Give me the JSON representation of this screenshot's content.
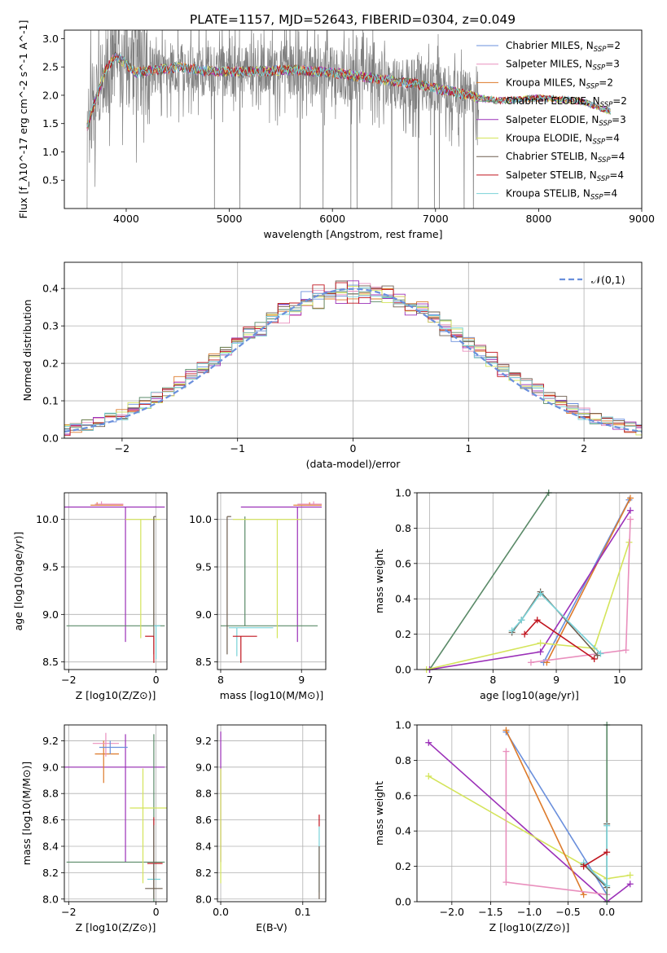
{
  "figure_title": "PLATE=1157, MJD=52643, FIBERID=0304, z=0.049",
  "colors": {
    "chabrier_miles": "#6a8fdc",
    "salpeter_miles": "#e98fbd",
    "kroupa_miles": "#dd7a2a",
    "chabrier_elodie": "#5a8a68",
    "salpeter_elodie": "#9b30b8",
    "kroupa_elodie": "#d4e45a",
    "chabrier_stelib": "#6e5e50",
    "salpeter_stelib": "#c0141e",
    "kroupa_stelib": "#79d2d8",
    "data": "#808080",
    "grid": "#b0b0b0"
  },
  "chart_data": [
    {
      "id": "spectrum",
      "type": "line",
      "xlabel": "wavelength [Angstrom, rest frame]",
      "ylabel": "Flux [f_λ10^-17 erg cm^-2 s^-1 A^-1]",
      "xlim": [
        3400,
        9000
      ],
      "ylim": [
        0.0,
        3.15
      ],
      "xticks": [
        4000,
        5000,
        6000,
        7000,
        8000,
        9000
      ],
      "yticks": [
        0.5,
        1.0,
        1.5,
        2.0,
        2.5,
        3.0
      ],
      "grid": false,
      "legend": "upper right",
      "data_range_x": [
        3620,
        7420
      ],
      "model_continuum": {
        "x": [
          3620,
          3700,
          3800,
          3900,
          4000,
          4100,
          4300,
          4500,
          4800,
          5200,
          5600,
          6000,
          6400,
          6800,
          7200,
          7420,
          7600,
          8000,
          8400,
          8800
        ],
        "y": [
          1.45,
          1.9,
          2.45,
          2.7,
          2.55,
          2.4,
          2.45,
          2.5,
          2.42,
          2.42,
          2.45,
          2.4,
          2.3,
          2.2,
          2.05,
          1.95,
          1.9,
          1.95,
          1.9,
          1.65
        ]
      },
      "series": [
        {
          "name": "Chabrier MILES",
          "nssp": 2,
          "color_key": "chabrier_miles"
        },
        {
          "name": "Salpeter MILES",
          "nssp": 3,
          "color_key": "salpeter_miles"
        },
        {
          "name": "Kroupa MILES",
          "nssp": 2,
          "color_key": "kroupa_miles"
        },
        {
          "name": "Chabrier ELODIE",
          "nssp": 2,
          "color_key": "chabrier_elodie"
        },
        {
          "name": "Salpeter ELODIE",
          "nssp": 3,
          "color_key": "salpeter_elodie"
        },
        {
          "name": "Kroupa ELODIE",
          "nssp": 4,
          "color_key": "kroupa_elodie"
        },
        {
          "name": "Chabrier STELIB",
          "nssp": 4,
          "color_key": "chabrier_stelib"
        },
        {
          "name": "Salpeter STELIB",
          "nssp": 4,
          "color_key": "salpeter_stelib"
        },
        {
          "name": "Kroupa STELIB",
          "nssp": 4,
          "color_key": "kroupa_stelib"
        }
      ]
    },
    {
      "id": "residuals",
      "type": "line",
      "xlabel": "(data-model)/error",
      "ylabel": "Normed distribution",
      "xlim": [
        -2.5,
        2.5
      ],
      "ylim": [
        0.0,
        0.47
      ],
      "xticks": [
        -2,
        -1,
        0,
        1,
        2
      ],
      "yticks": [
        0.0,
        0.1,
        0.2,
        0.3,
        0.4
      ],
      "grid": true,
      "legend": "upper right",
      "legend_label": "𝒩(0,1)",
      "bin_width": 0.1
    },
    {
      "id": "age_vs_Z",
      "type": "scatter",
      "xlabel": "Z [log10(Z/Z⊙)]",
      "ylabel": "age [log10(age/yr)]",
      "xlim": [
        -2.1,
        0.25
      ],
      "ylim": [
        8.42,
        10.28
      ],
      "xticks": [
        -2,
        0
      ],
      "yticks": [
        8.5,
        9.0,
        9.5,
        10.0
      ],
      "grid": true,
      "points": [
        {
          "series": "Salpeter ELODIE",
          "x": -0.7,
          "y": 10.13,
          "xerr": [
            1.4,
            0.9
          ],
          "yerr": [
            1.42,
            0.0
          ]
        },
        {
          "series": "Chabrier ELODIE",
          "x": -0.05,
          "y": 8.88,
          "xerr": [
            2.0,
            0.25
          ],
          "yerr": [
            0.0,
            1.15
          ]
        },
        {
          "series": "Kroupa MILES",
          "x": -1.35,
          "y": 10.15,
          "xerr": [
            0.15,
            0.6
          ],
          "yerr": [
            0.0,
            0.03
          ]
        },
        {
          "series": "Salpeter MILES",
          "x": -1.25,
          "y": 10.16,
          "xerr": [
            0.15,
            0.5
          ],
          "yerr": [
            0.0,
            0.03
          ]
        },
        {
          "series": "Kroupa ELODIE",
          "x": -0.35,
          "y": 10.0,
          "xerr": [
            0.35,
            0.45
          ],
          "yerr": [
            1.25,
            0.0
          ]
        },
        {
          "series": "Chabrier STELIB",
          "x": -0.05,
          "y": 10.03,
          "xerr": [
            0.0,
            0.05
          ],
          "yerr": [
            1.45,
            0.0
          ]
        },
        {
          "series": "Kroupa STELIB",
          "x": 0.0,
          "y": 8.88,
          "xerr": [
            0.05,
            0.1
          ],
          "yerr": [
            0.35,
            0.0
          ]
        },
        {
          "series": "Salpeter STELIB",
          "x": -0.05,
          "y": 8.77,
          "xerr": [
            0.2,
            0.0
          ],
          "yerr": [
            0.28,
            0.0
          ]
        }
      ]
    },
    {
      "id": "age_vs_mass",
      "type": "scatter",
      "xlabel": "mass [log10(M/M⊙)]",
      "ylabel": "",
      "xlim": [
        7.96,
        9.3
      ],
      "ylim": [
        8.42,
        10.28
      ],
      "xticks": [
        8,
        9
      ],
      "yticks": [
        8.5,
        9.0,
        9.5,
        10.0
      ],
      "grid": true,
      "points": [
        {
          "series": "Salpeter ELODIE",
          "x": 8.95,
          "y": 10.13,
          "xerr": [
            0.7,
            0.3
          ],
          "yerr": [
            1.42,
            0.0
          ]
        },
        {
          "series": "Chabrier ELODIE",
          "x": 8.3,
          "y": 8.88,
          "xerr": [
            0.3,
            0.9
          ],
          "yerr": [
            0.0,
            1.15
          ]
        },
        {
          "series": "Kroupa MILES",
          "x": 9.1,
          "y": 10.15,
          "xerr": [
            0.2,
            0.15
          ],
          "yerr": [
            0.0,
            0.03
          ]
        },
        {
          "series": "Salpeter MILES",
          "x": 9.15,
          "y": 10.16,
          "xerr": [
            0.2,
            0.1
          ],
          "yerr": [
            0.0,
            0.03
          ]
        },
        {
          "series": "Kroupa ELODIE",
          "x": 8.7,
          "y": 10.0,
          "xerr": [
            0.55,
            0.3
          ],
          "yerr": [
            1.25,
            0.0
          ]
        },
        {
          "series": "Chabrier STELIB",
          "x": 8.08,
          "y": 10.03,
          "xerr": [
            0.0,
            0.05
          ],
          "yerr": [
            1.45,
            0.0
          ]
        },
        {
          "series": "Kroupa STELIB",
          "x": 8.2,
          "y": 8.86,
          "xerr": [
            0.1,
            0.45
          ],
          "yerr": [
            0.3,
            0.0
          ]
        },
        {
          "series": "Salpeter STELIB",
          "x": 8.25,
          "y": 8.77,
          "xerr": [
            0.1,
            0.2
          ],
          "yerr": [
            0.28,
            0.0
          ]
        }
      ]
    },
    {
      "id": "weight_vs_age",
      "type": "line",
      "xlabel": "age [log10(age/yr)]",
      "ylabel": "mass weight",
      "xlim": [
        6.8,
        10.35
      ],
      "ylim": [
        0.0,
        1.0
      ],
      "xticks": [
        7,
        8,
        9,
        10
      ],
      "yticks": [
        0.0,
        0.2,
        0.4,
        0.6,
        0.8,
        1.0
      ],
      "grid": true,
      "series": [
        {
          "name": "Chabrier ELODIE",
          "color_key": "chabrier_elodie",
          "x": [
            7.0,
            8.88
          ],
          "y": [
            0.0,
            1.0
          ]
        },
        {
          "name": "Chabrier MILES",
          "color_key": "chabrier_miles",
          "x": [
            8.8,
            10.15
          ],
          "y": [
            0.04,
            0.96
          ]
        },
        {
          "name": "Kroupa MILES",
          "color_key": "kroupa_miles",
          "x": [
            8.85,
            10.17
          ],
          "y": [
            0.04,
            0.97
          ]
        },
        {
          "name": "Salpeter ELODIE",
          "color_key": "salpeter_elodie",
          "x": [
            7.0,
            8.75,
            10.17
          ],
          "y": [
            0.0,
            0.1,
            0.9
          ]
        },
        {
          "name": "Kroupa ELODIE",
          "color_key": "kroupa_elodie",
          "x": [
            6.95,
            8.75,
            9.6,
            10.15
          ],
          "y": [
            0.0,
            0.15,
            0.12,
            0.72
          ]
        },
        {
          "name": "Salpeter MILES",
          "color_key": "salpeter_miles",
          "x": [
            8.6,
            10.1,
            10.17
          ],
          "y": [
            0.04,
            0.11,
            0.85
          ]
        },
        {
          "name": "Chabrier STELIB",
          "color_key": "chabrier_stelib",
          "x": [
            8.3,
            8.45,
            8.75,
            9.65
          ],
          "y": [
            0.21,
            0.28,
            0.44,
            0.08
          ]
        },
        {
          "name": "Kroupa STELIB",
          "color_key": "kroupa_stelib",
          "x": [
            8.3,
            8.45,
            8.75,
            9.7
          ],
          "y": [
            0.22,
            0.28,
            0.43,
            0.09
          ]
        },
        {
          "name": "Salpeter STELIB",
          "color_key": "salpeter_stelib",
          "x": [
            8.5,
            8.7,
            9.6
          ],
          "y": [
            0.2,
            0.28,
            0.06
          ]
        }
      ]
    },
    {
      "id": "mass_vs_Z",
      "type": "scatter",
      "xlabel": "Z [log10(Z/Z⊙)]",
      "ylabel": "mass [log10(M/M⊙)]",
      "xlim": [
        -2.1,
        0.25
      ],
      "ylim": [
        7.98,
        9.32
      ],
      "xticks": [
        -2,
        0
      ],
      "yticks": [
        8.0,
        8.2,
        8.4,
        8.6,
        8.8,
        9.0,
        9.2
      ],
      "grid": true,
      "points": [
        {
          "series": "Salpeter ELODIE",
          "x": -0.7,
          "y": 9.0,
          "xerr": [
            1.4,
            0.9
          ],
          "yerr": [
            0.72,
            0.25
          ]
        },
        {
          "series": "Chabrier ELODIE",
          "x": -0.05,
          "y": 8.28,
          "xerr": [
            2.0,
            0.25
          ],
          "yerr": [
            0.3,
            0.97
          ]
        },
        {
          "series": "Kroupa MILES",
          "x": -1.2,
          "y": 9.1,
          "xerr": [
            0.2,
            0.35
          ],
          "yerr": [
            0.22,
            0.1
          ]
        },
        {
          "series": "Salpeter MILES",
          "x": -1.15,
          "y": 9.18,
          "xerr": [
            0.3,
            0.3
          ],
          "yerr": [
            0.1,
            0.08
          ]
        },
        {
          "series": "Chabrier MILES",
          "x": -1.05,
          "y": 9.15,
          "xerr": [
            0.25,
            0.4
          ],
          "yerr": [
            0.05,
            0.05
          ]
        },
        {
          "series": "Kroupa ELODIE",
          "x": -0.3,
          "y": 8.69,
          "xerr": [
            0.3,
            0.55
          ],
          "yerr": [
            0.57,
            0.3
          ]
        },
        {
          "series": "Salpeter STELIB",
          "x": -0.05,
          "y": 8.27,
          "xerr": [
            0.15,
            0.2
          ],
          "yerr": [
            0.2,
            0.35
          ]
        },
        {
          "series": "Kroupa STELIB",
          "x": -0.05,
          "y": 8.15,
          "xerr": [
            0.15,
            0.15
          ],
          "yerr": [
            0.15,
            0.38
          ]
        },
        {
          "series": "Chabrier STELIB",
          "x": -0.05,
          "y": 8.08,
          "xerr": [
            0.2,
            0.2
          ],
          "yerr": [
            0.08,
            0.48
          ]
        }
      ]
    },
    {
      "id": "mass_vs_ebv",
      "type": "scatter",
      "xlabel": "E(B-V)",
      "ylabel": "",
      "xlim": [
        -0.004,
        0.128
      ],
      "ylim": [
        7.98,
        9.32
      ],
      "xticks": [
        0.0,
        0.1
      ],
      "yticks": [
        8.0,
        8.2,
        8.4,
        8.6,
        8.8,
        9.0,
        9.2
      ],
      "grid": true,
      "points": [
        {
          "series": "Salpeter ELODIE",
          "x": 0.0,
          "y": 9.0,
          "xerr": [
            0,
            0
          ],
          "yerr": [
            0.72,
            0.27
          ]
        },
        {
          "series": "Kroupa ELODIE",
          "x": 0.0,
          "y": 8.69,
          "xerr": [
            0,
            0
          ],
          "yerr": [
            0.57,
            0.3
          ]
        },
        {
          "series": "Salpeter STELIB",
          "x": 0.12,
          "y": 8.6,
          "xerr": [
            0,
            0
          ],
          "yerr": [
            0.05,
            0.04
          ]
        },
        {
          "series": "Kroupa STELIB",
          "x": 0.12,
          "y": 8.35,
          "xerr": [
            0,
            0
          ],
          "yerr": [
            0.3,
            0.2
          ]
        },
        {
          "series": "Chabrier STELIB",
          "x": 0.12,
          "y": 8.3,
          "xerr": [
            0,
            0
          ],
          "yerr": [
            0.3,
            0.1
          ]
        }
      ]
    },
    {
      "id": "weight_vs_Z",
      "type": "line",
      "xlabel": "Z [log10(Z/Z⊙)]",
      "ylabel": "mass weight",
      "xlim": [
        -2.45,
        0.45
      ],
      "ylim": [
        0.0,
        1.0
      ],
      "xticks": [
        -2.0,
        -1.5,
        -1.0,
        -0.5,
        0.0
      ],
      "yticks": [
        0.0,
        0.2,
        0.4,
        0.6,
        0.8,
        1.0
      ],
      "grid": true,
      "series": [
        {
          "name": "Salpeter ELODIE",
          "color_key": "salpeter_elodie",
          "x": [
            -2.3,
            0.0,
            0.3
          ],
          "y": [
            0.9,
            0.0,
            0.1
          ]
        },
        {
          "name": "Kroupa ELODIE",
          "color_key": "kroupa_elodie",
          "x": [
            -2.3,
            0.0,
            0.3
          ],
          "y": [
            0.71,
            0.13,
            0.15
          ]
        },
        {
          "name": "Chabrier MILES",
          "color_key": "chabrier_miles",
          "x": [
            -1.3,
            0.0
          ],
          "y": [
            0.96,
            0.04
          ]
        },
        {
          "name": "Kroupa MILES",
          "color_key": "kroupa_miles",
          "x": [
            -1.3,
            -0.3
          ],
          "y": [
            0.97,
            0.04
          ]
        },
        {
          "name": "Salpeter MILES",
          "color_key": "salpeter_miles",
          "x": [
            -1.3,
            -1.3,
            0.0
          ],
          "y": [
            0.85,
            0.11,
            0.04
          ]
        },
        {
          "name": "Chabrier ELODIE",
          "color_key": "chabrier_elodie",
          "x": [
            0.0,
            0.0
          ],
          "y": [
            0.0,
            1.0
          ]
        },
        {
          "name": "Chabrier STELIB",
          "color_key": "chabrier_stelib",
          "x": [
            -0.3,
            0.0,
            0.0
          ],
          "y": [
            0.21,
            0.08,
            0.44
          ]
        },
        {
          "name": "Kroupa STELIB",
          "color_key": "kroupa_stelib",
          "x": [
            -0.3,
            0.0,
            0.0
          ],
          "y": [
            0.22,
            0.09,
            0.43
          ]
        },
        {
          "name": "Salpeter STELIB",
          "color_key": "salpeter_stelib",
          "x": [
            -0.3,
            0.0
          ],
          "y": [
            0.2,
            0.28
          ]
        }
      ]
    }
  ]
}
